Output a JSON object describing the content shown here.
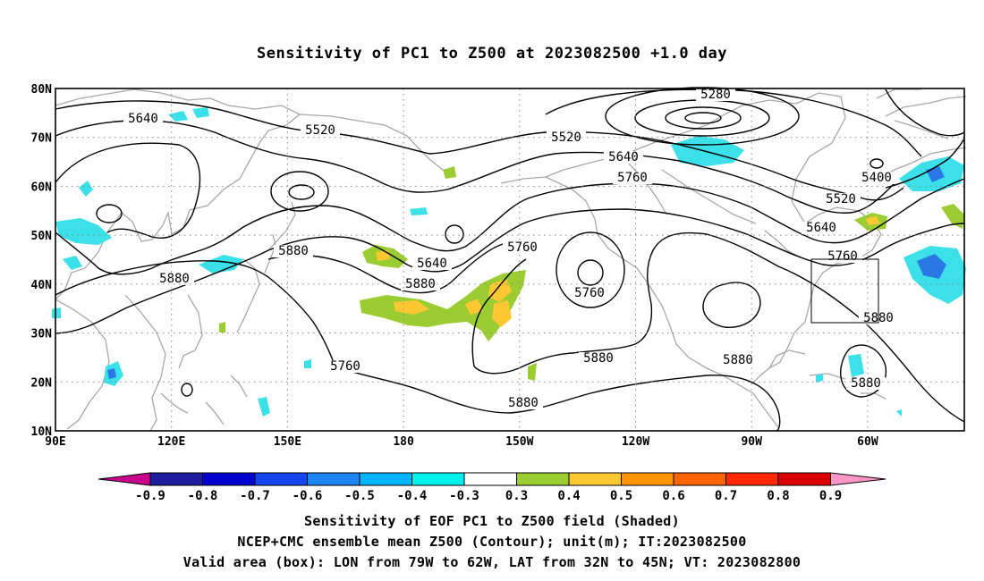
{
  "title": "Sensitivity of PC1 to Z500 at 2023082500 +1.0 day",
  "map": {
    "lat_labels": [
      "80N",
      "70N",
      "60N",
      "50N",
      "40N",
      "30N",
      "20N",
      "10N"
    ],
    "lon_labels": [
      "90E",
      "120E",
      "150E",
      "180",
      "150W",
      "120W",
      "90W",
      "60W"
    ],
    "lat_range": [
      10,
      80
    ],
    "lon_range_east": [
      90,
      325
    ],
    "gridlines": "dotted every 10 deg lat / 30 deg lon",
    "contour_labels": [
      "5640",
      "5520",
      "5280",
      "5520",
      "5640",
      "5760",
      "5400",
      "5520",
      "5640",
      "5760",
      "5880",
      "5760",
      "5640",
      "5880",
      "5760",
      "5880",
      "5760",
      "5880",
      "5880",
      "5880",
      "5880",
      "5880"
    ],
    "valid_box": {
      "lon_west": 79,
      "lon_east": 62,
      "lat_south": 32,
      "lat_north": 45
    }
  },
  "colorbar": {
    "labels": [
      "-0.9",
      "-0.8",
      "-0.7",
      "-0.6",
      "-0.5",
      "-0.4",
      "-0.3",
      "0.3",
      "0.4",
      "0.5",
      "0.6",
      "0.7",
      "0.8",
      "0.9"
    ],
    "colors": [
      "#c8008c",
      "#1e1ea0",
      "#0000d2",
      "#1446f0",
      "#1e82f0",
      "#00b4ff",
      "#00f0f0",
      "#ffffff",
      "#9bcd32",
      "#ffc832",
      "#ff9600",
      "#ff6400",
      "#ff2800",
      "#dc0000",
      "#ff96c8"
    ]
  },
  "colors": {
    "contour": "#000000",
    "coast": "#a8a8a8",
    "cyan": "#3ce0e8",
    "blue": "#2a78e6",
    "green": "#9bcd32",
    "yellow": "#ffc832"
  },
  "captions": {
    "line1": "Sensitivity of EOF PC1 to Z500 field (Shaded)",
    "line2": "NCEP+CMC ensemble mean Z500 (Contour); unit(m); IT:2023082500",
    "line3": "Valid area (box): LON from 79W to 62W, LAT from 32N to 45N; VT: 2023082800"
  }
}
